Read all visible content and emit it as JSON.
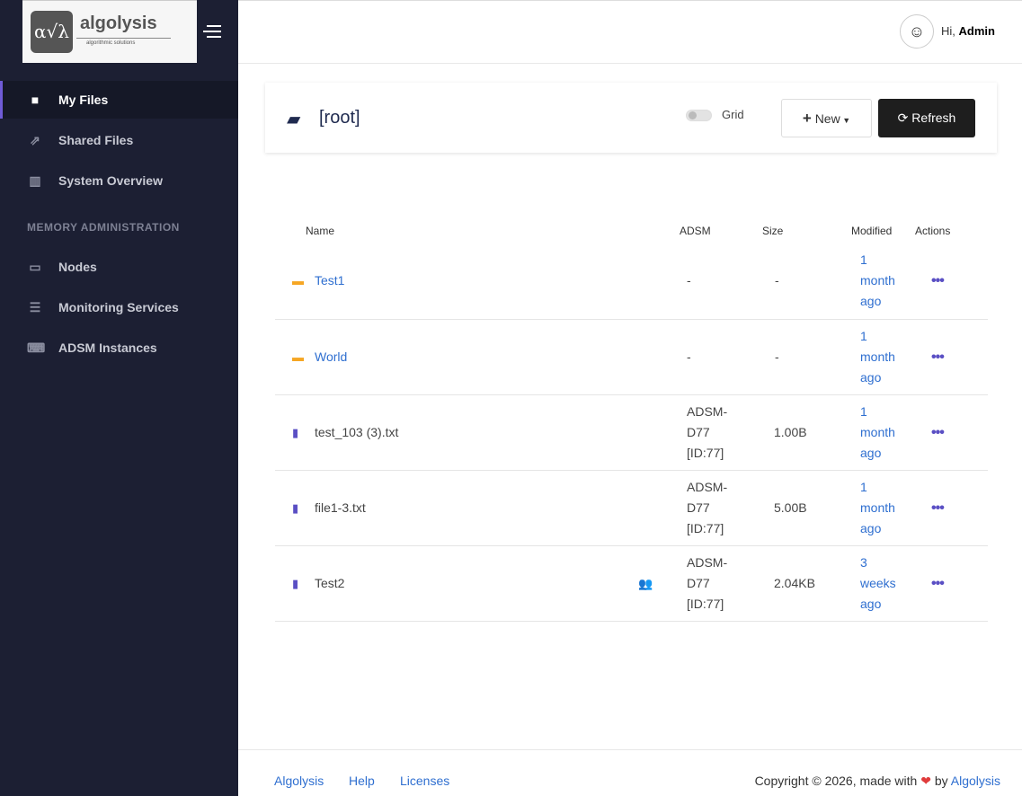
{
  "brand": {
    "name": "algolysis",
    "tagline": "algorithmic solutions",
    "mark": "α√λ"
  },
  "sidebar": {
    "items": [
      {
        "label": "My Files",
        "icon": "folder-icon"
      },
      {
        "label": "Shared Files",
        "icon": "share-icon"
      },
      {
        "label": "System Overview",
        "icon": "chart-icon"
      }
    ],
    "section": "MEMORY ADMINISTRATION",
    "admin_items": [
      {
        "label": "Nodes",
        "icon": "laptop-icon"
      },
      {
        "label": "Monitoring Services",
        "icon": "server-icon"
      },
      {
        "label": "ADSM Instances",
        "icon": "code-icon"
      }
    ]
  },
  "header": {
    "greeting": "Hi,",
    "user": "Admin"
  },
  "toolbar": {
    "path": "[root]",
    "grid_label": "Grid",
    "grid_on": false,
    "new_label": "New",
    "refresh_label": "Refresh"
  },
  "table": {
    "headers": [
      "Name",
      "ADSM",
      "Size",
      "Modified",
      "Actions"
    ],
    "rows": [
      {
        "name": "Test1",
        "type": "folder",
        "adsm": "-",
        "size": "-",
        "modified": "1 month ago",
        "shared": false
      },
      {
        "name": "World",
        "type": "folder",
        "adsm": "-",
        "size": "-",
        "modified": "1 month ago",
        "shared": false
      },
      {
        "name": "test_103 (3).txt",
        "type": "file",
        "adsm": "ADSM-D77 [ID:77]",
        "size": "1.00B",
        "modified": "1 month ago",
        "shared": false
      },
      {
        "name": "file1-3.txt",
        "type": "file",
        "adsm": "ADSM-D77 [ID:77]",
        "size": "5.00B",
        "modified": "1 month ago",
        "shared": false
      },
      {
        "name": "Test2",
        "type": "file",
        "adsm": "ADSM-D77 [ID:77]",
        "size": "2.04KB",
        "modified": "3 weeks ago",
        "shared": true
      }
    ]
  },
  "footer": {
    "links": [
      "Algolysis",
      "Help",
      "Licenses"
    ],
    "copyright": "Copyright © 2026, made with",
    "by": "by",
    "brand_link": "Algolysis"
  },
  "colors": {
    "sidebar": "#1c1f33",
    "accent": "#6f5bd6",
    "link": "#2f6fd0",
    "folder": "#f6a623",
    "file": "#5a4fc4"
  }
}
